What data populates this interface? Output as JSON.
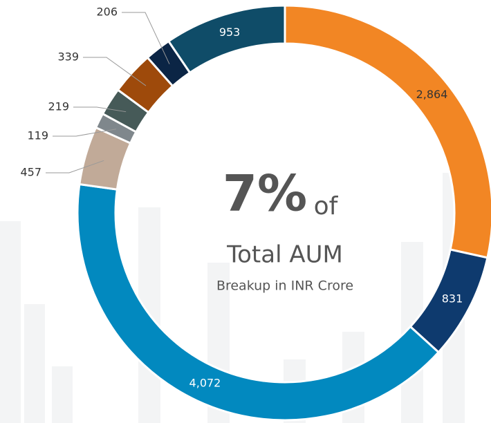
{
  "chart_data": {
    "type": "donut",
    "values": [
      2864,
      831,
      4072,
      457,
      119,
      219,
      339,
      206,
      953
    ],
    "value_labels": [
      "2,864",
      "831",
      "4,072",
      "457",
      "119",
      "219",
      "339",
      "206",
      "953"
    ],
    "colors": [
      "#F28624",
      "#0E3A6E",
      "#0289BF",
      "#C1AA98",
      "#7F878C",
      "#465A58",
      "#9E4A0B",
      "#0B2545",
      "#0F4C68"
    ],
    "center_text": {
      "big": "7%",
      "small": "of",
      "title": "Total AUM",
      "subtitle": "Breakup in INR Crore"
    }
  }
}
